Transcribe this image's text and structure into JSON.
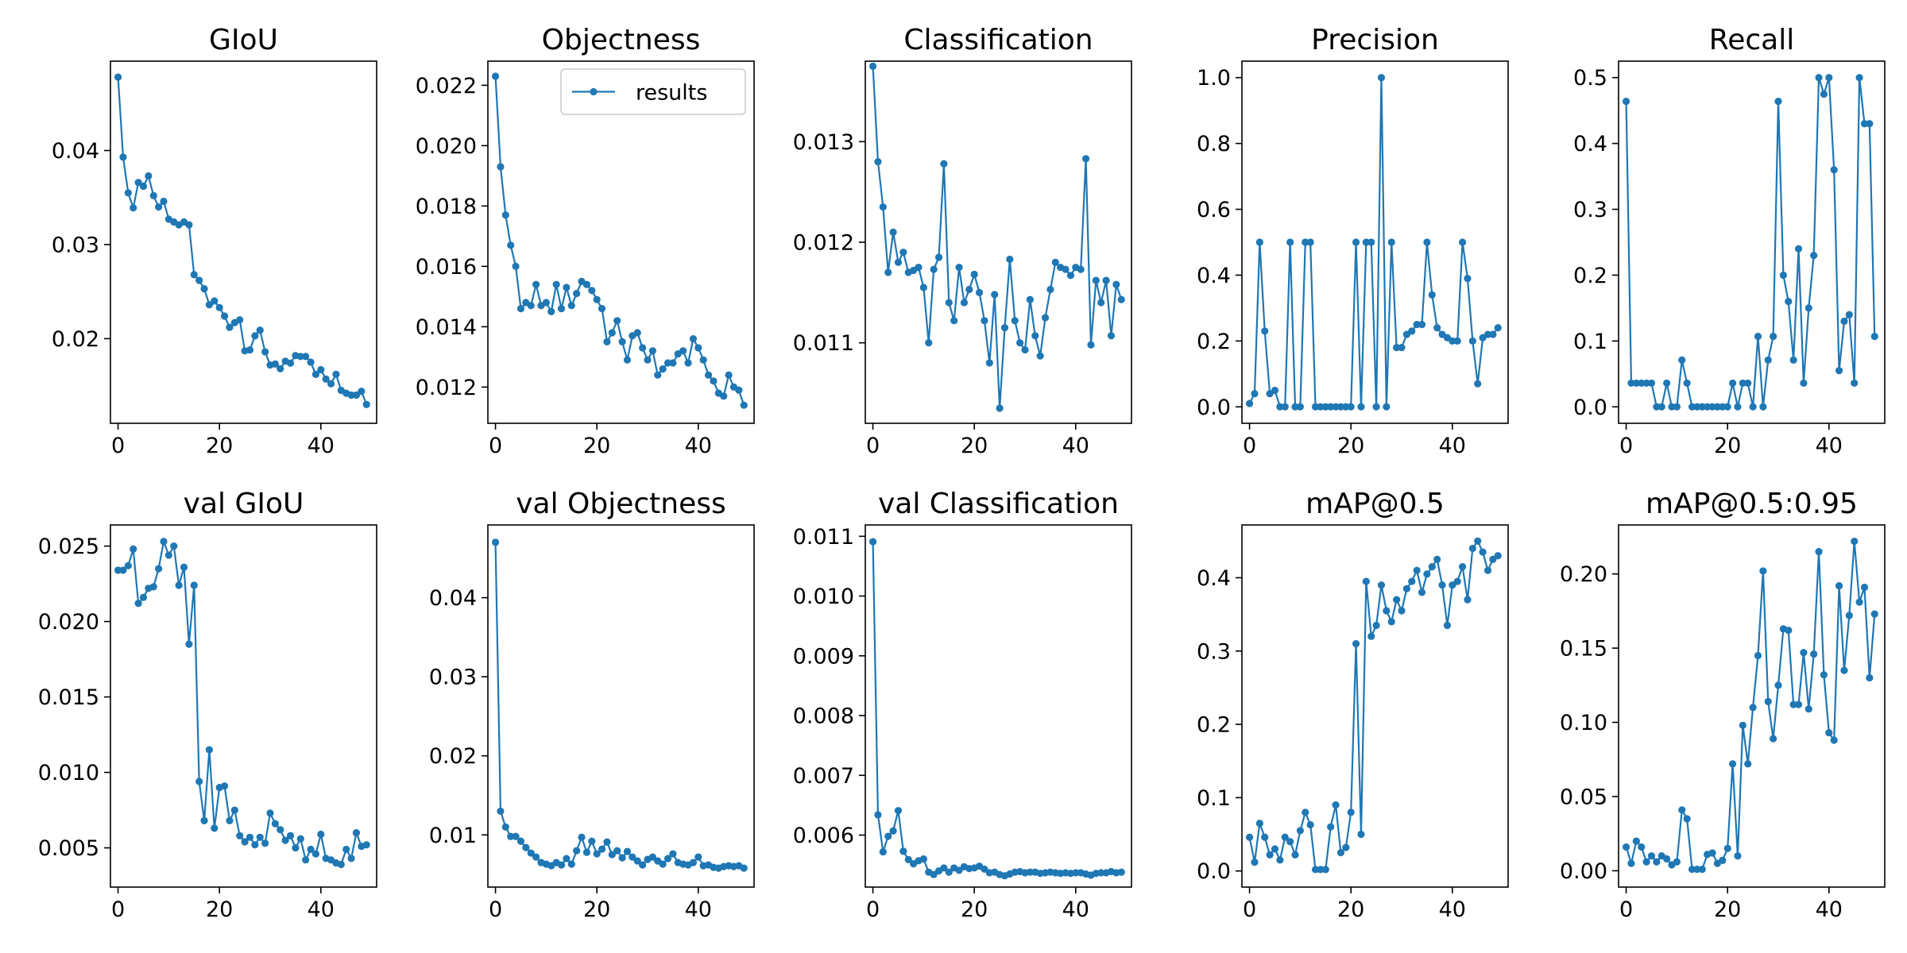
{
  "colors": {
    "series": "#1f77b4",
    "background": "#ffffff",
    "axes": "#000000"
  },
  "chart_data": [
    {
      "type": "line",
      "title": "GIoU",
      "xlabel": "",
      "ylabel": "",
      "xlim": [
        -1.5,
        51
      ],
      "ylim": [
        0.011,
        0.0495
      ],
      "xticks": [
        0,
        20,
        40
      ],
      "yticks": [
        0.02,
        0.03,
        0.04
      ],
      "tick_labels_y": [
        "0.02",
        "0.03",
        "0.04"
      ],
      "series": [
        {
          "values": [
            0.0478,
            0.0393,
            0.0355,
            0.0339,
            0.0366,
            0.0362,
            0.0373,
            0.0352,
            0.034,
            0.0346,
            0.0327,
            0.0324,
            0.0321,
            0.0324,
            0.0321,
            0.0268,
            0.0262,
            0.0253,
            0.0236,
            0.024,
            0.0233,
            0.0224,
            0.0212,
            0.0217,
            0.022,
            0.0187,
            0.0188,
            0.0203,
            0.0209,
            0.0186,
            0.0172,
            0.0173,
            0.0168,
            0.0176,
            0.0174,
            0.0182,
            0.0181,
            0.0181,
            0.0175,
            0.0162,
            0.0167,
            0.0157,
            0.0152,
            0.0162,
            0.0145,
            0.0142,
            0.014,
            0.014,
            0.0144,
            0.013
          ]
        }
      ]
    },
    {
      "type": "line",
      "title": "Objectness",
      "xlabel": "",
      "ylabel": "",
      "xlim": [
        -1.5,
        51
      ],
      "ylim": [
        0.0108,
        0.0228
      ],
      "xticks": [
        0,
        20,
        40
      ],
      "yticks": [
        0.012,
        0.014,
        0.016,
        0.018,
        0.02,
        0.022
      ],
      "tick_labels_y": [
        "0.012",
        "0.014",
        "0.016",
        "0.018",
        "0.020",
        "0.022"
      ],
      "legend": {
        "label": "results",
        "position": "upper right"
      },
      "series": [
        {
          "name": "results",
          "values": [
            0.0223,
            0.0193,
            0.0177,
            0.0167,
            0.016,
            0.0146,
            0.0148,
            0.0147,
            0.0154,
            0.0147,
            0.0148,
            0.0145,
            0.0154,
            0.0146,
            0.0153,
            0.0147,
            0.0151,
            0.0155,
            0.0154,
            0.0152,
            0.0149,
            0.0146,
            0.0135,
            0.0138,
            0.0142,
            0.0135,
            0.0129,
            0.0137,
            0.0138,
            0.0133,
            0.0129,
            0.0132,
            0.0124,
            0.0126,
            0.0128,
            0.0128,
            0.0131,
            0.0132,
            0.0128,
            0.0136,
            0.0133,
            0.0129,
            0.0124,
            0.0122,
            0.0118,
            0.0117,
            0.0124,
            0.012,
            0.0119,
            0.0114
          ]
        }
      ]
    },
    {
      "type": "line",
      "title": "Classification",
      "xlabel": "",
      "ylabel": "",
      "xlim": [
        -1.5,
        51
      ],
      "ylim": [
        0.0102,
        0.0138
      ],
      "xticks": [
        0,
        20,
        40
      ],
      "yticks": [
        0.011,
        0.012,
        0.013
      ],
      "tick_labels_y": [
        "0.011",
        "0.012",
        "0.013"
      ],
      "series": [
        {
          "values": [
            0.01375,
            0.0128,
            0.01235,
            0.0117,
            0.0121,
            0.0118,
            0.0119,
            0.0117,
            0.01172,
            0.01175,
            0.01155,
            0.011,
            0.01173,
            0.01185,
            0.01278,
            0.0114,
            0.01122,
            0.01175,
            0.0114,
            0.01153,
            0.01168,
            0.0115,
            0.01122,
            0.0108,
            0.01148,
            0.01035,
            0.01115,
            0.01183,
            0.01122,
            0.011,
            0.01093,
            0.01143,
            0.01107,
            0.01087,
            0.01125,
            0.01153,
            0.0118,
            0.01175,
            0.01173,
            0.01167,
            0.01175,
            0.01173,
            0.01283,
            0.01098,
            0.01162,
            0.0114,
            0.01162,
            0.01107,
            0.01158,
            0.01143
          ]
        }
      ]
    },
    {
      "type": "line",
      "title": "Precision",
      "xlabel": "",
      "ylabel": "",
      "xlim": [
        -1.5,
        51
      ],
      "ylim": [
        -0.05,
        1.05
      ],
      "xticks": [
        0,
        20,
        40
      ],
      "yticks": [
        0.0,
        0.2,
        0.4,
        0.6,
        0.8,
        1.0
      ],
      "tick_labels_y": [
        "0.0",
        "0.2",
        "0.4",
        "0.6",
        "0.8",
        "1.0"
      ],
      "series": [
        {
          "values": [
            0.01,
            0.04,
            0.5,
            0.23,
            0.04,
            0.05,
            0,
            0,
            0.5,
            0,
            0,
            0.5,
            0.5,
            0,
            0,
            0,
            0,
            0,
            0,
            0,
            0,
            0.5,
            0,
            0.5,
            0.5,
            0,
            1.0,
            0,
            0.5,
            0.18,
            0.18,
            0.22,
            0.23,
            0.25,
            0.25,
            0.5,
            0.34,
            0.24,
            0.22,
            0.21,
            0.2,
            0.2,
            0.5,
            0.39,
            0.2,
            0.07,
            0.21,
            0.22,
            0.22,
            0.24
          ]
        }
      ]
    },
    {
      "type": "line",
      "title": "Recall",
      "xlabel": "",
      "ylabel": "",
      "xlim": [
        -1.5,
        51
      ],
      "ylim": [
        -0.025,
        0.525
      ],
      "xticks": [
        0,
        20,
        40
      ],
      "yticks": [
        0.0,
        0.1,
        0.2,
        0.3,
        0.4,
        0.5
      ],
      "tick_labels_y": [
        "0.0",
        "0.1",
        "0.2",
        "0.3",
        "0.4",
        "0.5"
      ],
      "series": [
        {
          "values": [
            0.464,
            0.036,
            0.036,
            0.036,
            0.036,
            0.036,
            0,
            0,
            0.036,
            0,
            0,
            0.071,
            0.036,
            0,
            0,
            0,
            0,
            0,
            0,
            0,
            0,
            0.036,
            0,
            0.036,
            0.036,
            0,
            0.107,
            0,
            0.071,
            0.107,
            0.464,
            0.2,
            0.16,
            0.071,
            0.24,
            0.036,
            0.15,
            0.23,
            0.5,
            0.475,
            0.5,
            0.36,
            0.055,
            0.13,
            0.14,
            0.036,
            0.5,
            0.43,
            0.43,
            0.107
          ]
        }
      ]
    },
    {
      "type": "line",
      "title": "val GIoU",
      "xlabel": "",
      "ylabel": "",
      "xlim": [
        -1.5,
        51
      ],
      "ylim": [
        0.0024,
        0.0264
      ],
      "xticks": [
        0,
        20,
        40
      ],
      "yticks": [
        0.005,
        0.01,
        0.015,
        0.02,
        0.025
      ],
      "tick_labels_y": [
        "0.005",
        "0.010",
        "0.015",
        "0.020",
        "0.025"
      ],
      "series": [
        {
          "values": [
            0.0234,
            0.0234,
            0.0237,
            0.0248,
            0.0212,
            0.0216,
            0.0222,
            0.0223,
            0.0235,
            0.0253,
            0.0244,
            0.025,
            0.0224,
            0.0236,
            0.0185,
            0.0224,
            0.0094,
            0.0068,
            0.0115,
            0.0063,
            0.009,
            0.0091,
            0.0068,
            0.0075,
            0.0058,
            0.0054,
            0.0057,
            0.0052,
            0.0057,
            0.0053,
            0.0073,
            0.0066,
            0.0062,
            0.0055,
            0.0058,
            0.005,
            0.0056,
            0.0042,
            0.0049,
            0.0046,
            0.0059,
            0.0043,
            0.0042,
            0.004,
            0.0039,
            0.0049,
            0.0043,
            0.006,
            0.0051,
            0.0052
          ]
        }
      ]
    },
    {
      "type": "line",
      "title": "val Objectness",
      "xlabel": "",
      "ylabel": "",
      "xlim": [
        -1.5,
        51
      ],
      "ylim": [
        0.0034,
        0.0492
      ],
      "xticks": [
        0,
        20,
        40
      ],
      "yticks": [
        0.01,
        0.02,
        0.03,
        0.04
      ],
      "tick_labels_y": [
        "0.01",
        "0.02",
        "0.03",
        "0.04"
      ],
      "series": [
        {
          "values": [
            0.047,
            0.013,
            0.011,
            0.0098,
            0.0098,
            0.0092,
            0.0084,
            0.0077,
            0.0072,
            0.0065,
            0.0063,
            0.0061,
            0.0065,
            0.0062,
            0.007,
            0.0063,
            0.008,
            0.0097,
            0.0078,
            0.0092,
            0.0076,
            0.0082,
            0.0091,
            0.0075,
            0.008,
            0.0071,
            0.0079,
            0.0072,
            0.0067,
            0.0062,
            0.0069,
            0.0072,
            0.0067,
            0.0063,
            0.007,
            0.0076,
            0.0065,
            0.0063,
            0.0062,
            0.0065,
            0.0072,
            0.0061,
            0.0062,
            0.0059,
            0.0058,
            0.006,
            0.0061,
            0.006,
            0.0061,
            0.0058
          ]
        }
      ]
    },
    {
      "type": "line",
      "title": "val Classification",
      "xlabel": "",
      "ylabel": "",
      "xlim": [
        -1.5,
        51
      ],
      "ylim": [
        0.00513,
        0.01119
      ],
      "xticks": [
        0,
        20,
        40
      ],
      "yticks": [
        0.006,
        0.007,
        0.008,
        0.009,
        0.01,
        0.011
      ],
      "tick_labels_y": [
        "0.006",
        "0.007",
        "0.008",
        "0.009",
        "0.010",
        "0.011"
      ],
      "series": [
        {
          "values": [
            0.01091,
            0.00634,
            0.00572,
            0.00598,
            0.00607,
            0.00641,
            0.00573,
            0.00559,
            0.00552,
            0.00557,
            0.0056,
            0.00538,
            0.00534,
            0.0054,
            0.00545,
            0.00538,
            0.00545,
            0.00541,
            0.00547,
            0.00544,
            0.00545,
            0.00548,
            0.00543,
            0.00537,
            0.00538,
            0.00534,
            0.00532,
            0.00535,
            0.00538,
            0.00539,
            0.00537,
            0.00538,
            0.00538,
            0.00536,
            0.00537,
            0.00538,
            0.00537,
            0.00536,
            0.00537,
            0.00536,
            0.00537,
            0.00537,
            0.00535,
            0.00533,
            0.00536,
            0.00537,
            0.00537,
            0.00539,
            0.00537,
            0.00538
          ]
        }
      ]
    },
    {
      "type": "line",
      "title": "mAP@0.5",
      "xlabel": "",
      "ylabel": "",
      "xlim": [
        -1.5,
        51
      ],
      "ylim": [
        -0.022,
        0.472
      ],
      "xticks": [
        0,
        20,
        40
      ],
      "yticks": [
        0.0,
        0.1,
        0.2,
        0.3,
        0.4
      ],
      "tick_labels_y": [
        "0.0",
        "0.1",
        "0.2",
        "0.3",
        "0.4"
      ],
      "series": [
        {
          "values": [
            0.046,
            0.012,
            0.065,
            0.046,
            0.022,
            0.03,
            0.015,
            0.046,
            0.04,
            0.022,
            0.055,
            0.08,
            0.063,
            0.002,
            0.002,
            0.002,
            0.06,
            0.09,
            0.025,
            0.032,
            0.08,
            0.31,
            0.05,
            0.395,
            0.32,
            0.335,
            0.39,
            0.355,
            0.34,
            0.37,
            0.355,
            0.385,
            0.395,
            0.41,
            0.38,
            0.405,
            0.415,
            0.425,
            0.39,
            0.335,
            0.39,
            0.395,
            0.415,
            0.37,
            0.44,
            0.45,
            0.435,
            0.41,
            0.425,
            0.43
          ]
        }
      ]
    },
    {
      "type": "line",
      "title": "mAP@0.5:0.95",
      "xlabel": "",
      "ylabel": "",
      "xlim": [
        -1.5,
        51
      ],
      "ylim": [
        -0.011,
        0.233
      ],
      "xticks": [
        0,
        20,
        40
      ],
      "yticks": [
        0.0,
        0.05,
        0.1,
        0.15,
        0.2
      ],
      "tick_labels_y": [
        "0.00",
        "0.05",
        "0.10",
        "0.15",
        "0.20"
      ],
      "series": [
        {
          "values": [
            0.016,
            0.005,
            0.02,
            0.016,
            0.006,
            0.01,
            0.006,
            0.01,
            0.008,
            0.004,
            0.006,
            0.041,
            0.035,
            0.001,
            0.001,
            0.001,
            0.011,
            0.012,
            0.005,
            0.007,
            0.015,
            0.072,
            0.01,
            0.098,
            0.072,
            0.11,
            0.145,
            0.202,
            0.114,
            0.089,
            0.125,
            0.163,
            0.162,
            0.112,
            0.112,
            0.147,
            0.109,
            0.146,
            0.215,
            0.132,
            0.093,
            0.088,
            0.192,
            0.135,
            0.172,
            0.222,
            0.181,
            0.191,
            0.13,
            0.173
          ]
        }
      ]
    }
  ]
}
